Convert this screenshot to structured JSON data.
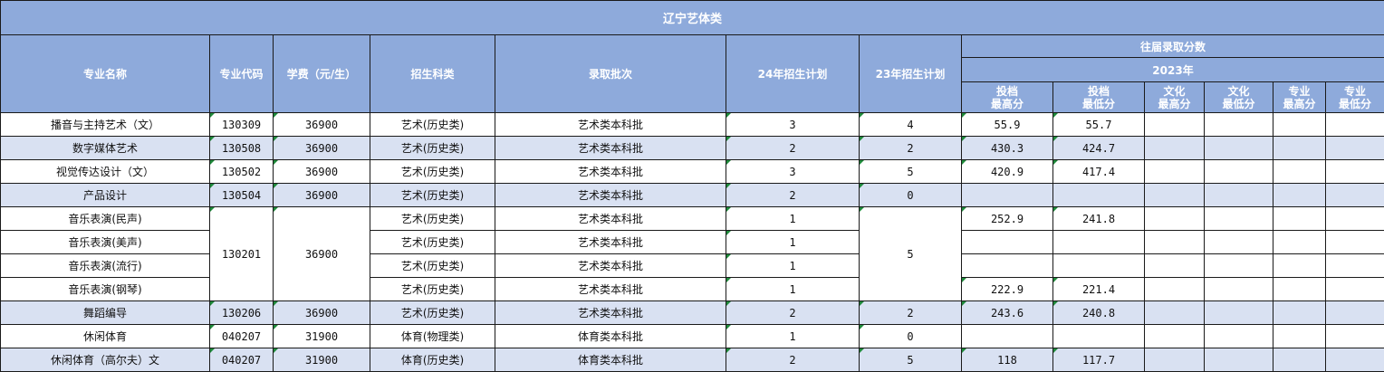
{
  "title": "辽宁艺体类",
  "headers": {
    "name": "专业名称",
    "code": "专业代码",
    "fee": "学费（元/生）",
    "category": "招生科类",
    "batch": "录取批次",
    "plan24": "24年招生计划",
    "plan23": "23年招生计划",
    "past": "往届录取分数",
    "year": "2023年",
    "score_cols": [
      "投档\n最高分",
      "投档\n最低分",
      "文化\n最高分",
      "文化\n最低分",
      "专业\n最高分",
      "专业\n最低分"
    ]
  },
  "colors": {
    "header_bg": "#8eaadb",
    "alt_row_bg": "#d9e1f2"
  },
  "rows": [
    {
      "name": "播音与主持艺术（文）",
      "code": "130309",
      "fee": "36900",
      "category": "艺术(历史类)",
      "batch": "艺术类本科批",
      "plan24": "3",
      "plan23": "4",
      "scores": [
        "55.9",
        "55.7",
        "",
        "",
        "",
        ""
      ],
      "alt": false
    },
    {
      "name": "数字媒体艺术",
      "code": "130508",
      "fee": "36900",
      "category": "艺术(历史类)",
      "batch": "艺术类本科批",
      "plan24": "2",
      "plan23": "2",
      "scores": [
        "430.3",
        "424.7",
        "",
        "",
        "",
        ""
      ],
      "alt": true
    },
    {
      "name": "视觉传达设计（文）",
      "code": "130502",
      "fee": "36900",
      "category": "艺术(历史类)",
      "batch": "艺术类本科批",
      "plan24": "3",
      "plan23": "5",
      "scores": [
        "420.9",
        "417.4",
        "",
        "",
        "",
        ""
      ],
      "alt": false
    },
    {
      "name": "产品设计",
      "code": "130504",
      "fee": "36900",
      "category": "艺术(历史类)",
      "batch": "艺术类本科批",
      "plan24": "2",
      "plan23": "0",
      "scores": [
        "",
        "",
        "",
        "",
        "",
        ""
      ],
      "alt": true
    },
    {
      "name": "音乐表演(民声)",
      "code": "130201",
      "fee": "36900",
      "category": "艺术(历史类)",
      "batch": "艺术类本科批",
      "plan24": "1",
      "plan23": "5",
      "scores": [
        "252.9",
        "241.8",
        "",
        "",
        "",
        ""
      ],
      "alt": false
    },
    {
      "name": "音乐表演(美声)",
      "code": null,
      "fee": null,
      "category": "艺术(历史类)",
      "batch": "艺术类本科批",
      "plan24": "1",
      "plan23": null,
      "scores": [
        "",
        "",
        "",
        "",
        "",
        ""
      ],
      "alt": false
    },
    {
      "name": "音乐表演(流行)",
      "code": null,
      "fee": null,
      "category": "艺术(历史类)",
      "batch": "艺术类本科批",
      "plan24": "1",
      "plan23": null,
      "scores": [
        "",
        "",
        "",
        "",
        "",
        ""
      ],
      "alt": false
    },
    {
      "name": "音乐表演(钢琴)",
      "code": null,
      "fee": null,
      "category": "艺术(历史类)",
      "batch": "艺术类本科批",
      "plan24": "1",
      "plan23": null,
      "scores": [
        "222.9",
        "221.4",
        "",
        "",
        "",
        ""
      ],
      "alt": false
    },
    {
      "name": "舞蹈编导",
      "code": "130206",
      "fee": "36900",
      "category": "艺术(历史类)",
      "batch": "艺术类本科批",
      "plan24": "2",
      "plan23": "2",
      "scores": [
        "243.6",
        "240.8",
        "",
        "",
        "",
        ""
      ],
      "alt": true
    },
    {
      "name": "休闲体育",
      "code": "040207",
      "fee": "31900",
      "category": "体育(物理类)",
      "batch": "体育类本科批",
      "plan24": "1",
      "plan23": "0",
      "scores": [
        "",
        "",
        "",
        "",
        "",
        ""
      ],
      "alt": false
    },
    {
      "name": "休闲体育（高尔夫）文",
      "code": "040207",
      "fee": "31900",
      "category": "体育(历史类)",
      "batch": "体育类本科批",
      "plan24": "2",
      "plan23": "5",
      "scores": [
        "118",
        "117.7",
        "",
        "",
        "",
        ""
      ],
      "alt": true
    }
  ]
}
